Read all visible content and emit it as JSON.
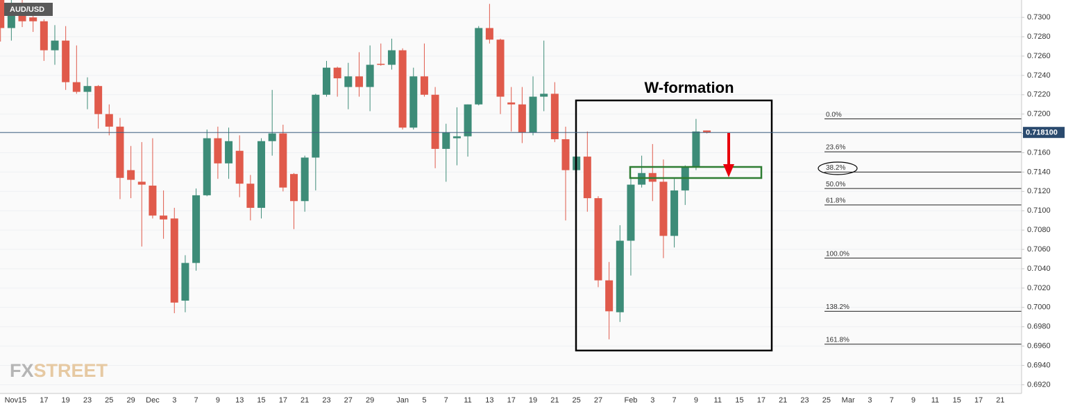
{
  "chart_data": {
    "type": "candlestick",
    "symbol": "AUD/USD",
    "watermark": {
      "prefix": "FX",
      "suffix": "STREET"
    },
    "annotation": "W-formation",
    "categories": [
      null,
      "Nov",
      "15",
      null,
      "17",
      null,
      "19",
      null,
      "23",
      null,
      "25",
      null,
      "29",
      null,
      "Dec",
      null,
      "3",
      null,
      "7",
      null,
      "9",
      null,
      "13",
      null,
      "15",
      null,
      "17",
      null,
      "21",
      null,
      "23",
      null,
      "27",
      null,
      "29",
      null,
      null,
      "Jan",
      null,
      "5",
      null,
      "7",
      null,
      "11",
      null,
      "13",
      null,
      "17",
      null,
      "19",
      null,
      "21",
      null,
      "25",
      null,
      "27",
      null,
      null,
      "Feb",
      null,
      "3",
      null,
      "7",
      null,
      "9",
      null,
      "11",
      null,
      "15",
      null,
      "17",
      null,
      "21",
      null,
      "23",
      null,
      "25",
      null,
      "Mar",
      null,
      "3",
      null,
      "7",
      null,
      "9",
      null,
      "11",
      null,
      "15",
      null,
      "17",
      null,
      "21",
      null
    ],
    "open": [
      0.732,
      0.7289,
      0.7315,
      0.73,
      0.7296,
      0.7266,
      0.7276,
      0.7233,
      0.7223,
      0.7229,
      0.72,
      0.7187,
      0.7142,
      0.713,
      0.7126,
      0.7095,
      0.7092,
      0.7007,
      0.7046,
      0.7116,
      0.7175,
      0.7149,
      0.7162,
      0.7128,
      0.7103,
      0.7172,
      0.718,
      0.7138,
      0.711,
      0.7155,
      0.722,
      0.7248,
      0.7228,
      0.7239,
      0.7228,
      0.7252,
      0.7251,
      0.7266,
      0.7186,
      0.7239,
      0.722,
      0.7164,
      0.7175,
      0.7177,
      0.721,
      0.7289,
      0.7277,
      0.7212,
      0.721,
      0.7181,
      0.7218,
      0.7221,
      0.7174,
      0.7142,
      0.7156,
      0.7113,
      0.7028,
      0.6995,
      0.7069,
      0.7127,
      0.7139,
      0.713,
      0.7074,
      0.7121,
      0.7145,
      0.7183,
      null,
      null,
      null,
      null,
      null,
      null,
      null,
      null,
      null,
      null,
      null,
      null,
      null,
      null,
      null,
      null,
      null,
      null,
      null,
      null,
      null,
      null,
      null,
      null,
      null,
      null,
      null,
      null
    ],
    "high": [
      0.7325,
      0.7322,
      0.7322,
      0.7306,
      0.7298,
      0.7292,
      0.7291,
      0.7271,
      0.7238,
      0.723,
      0.721,
      0.7196,
      0.7167,
      0.7171,
      0.7175,
      0.7121,
      0.7103,
      0.7054,
      0.7123,
      0.7184,
      0.7187,
      0.7186,
      0.7178,
      0.7137,
      0.7175,
      0.7225,
      0.7189,
      0.7139,
      0.7157,
      0.7221,
      0.7255,
      0.7249,
      0.7253,
      0.7264,
      0.7271,
      0.7273,
      0.7278,
      0.7268,
      0.7248,
      0.7273,
      0.7228,
      0.719,
      0.7207,
      0.721,
      0.7291,
      0.7314,
      0.7278,
      0.7228,
      0.7228,
      0.7239,
      0.7276,
      0.7233,
      0.7187,
      0.7157,
      0.7182,
      0.7115,
      0.7047,
      0.7085,
      0.7135,
      0.7157,
      0.7169,
      0.7153,
      0.7133,
      0.7147,
      0.7195,
      0.7183,
      null,
      null,
      null,
      null,
      null,
      null,
      null,
      null,
      null,
      null,
      null,
      null,
      null,
      null,
      null,
      null,
      null,
      null,
      null,
      null,
      null,
      null,
      null,
      null,
      null,
      null,
      null,
      null
    ],
    "low": [
      0.7275,
      0.7276,
      0.729,
      0.7285,
      0.7255,
      0.7251,
      0.7225,
      0.7221,
      0.7205,
      0.7185,
      0.7178,
      0.7112,
      0.7113,
      0.7063,
      0.7092,
      0.7071,
      0.6994,
      0.6995,
      0.7038,
      0.7115,
      0.7133,
      0.7133,
      0.7114,
      0.709,
      0.7092,
      0.7157,
      0.712,
      0.7081,
      0.7099,
      0.7121,
      0.7218,
      0.7218,
      0.7205,
      0.7218,
      0.7203,
      0.725,
      0.7246,
      0.7184,
      0.7184,
      0.7218,
      0.7144,
      0.713,
      0.7147,
      0.7156,
      0.7209,
      0.7273,
      0.72,
      0.7182,
      0.717,
      0.7178,
      0.7203,
      0.7171,
      0.709,
      0.7128,
      0.7099,
      0.7021,
      0.6967,
      0.6985,
      0.7033,
      0.7124,
      0.711,
      0.7051,
      0.7062,
      0.7106,
      0.7142,
      0.718,
      null,
      null,
      null,
      null,
      null,
      null,
      null,
      null,
      null,
      null,
      null,
      null,
      null,
      null,
      null,
      null,
      null,
      null,
      null,
      null,
      null,
      null,
      null,
      null,
      null,
      null,
      null,
      null
    ],
    "close": [
      0.7289,
      0.7315,
      0.7296,
      0.7296,
      0.7266,
      0.7276,
      0.7233,
      0.7223,
      0.7229,
      0.72,
      0.7187,
      0.7134,
      0.7132,
      0.7127,
      0.7095,
      0.7091,
      0.7005,
      0.7046,
      0.7116,
      0.7175,
      0.7149,
      0.7172,
      0.7128,
      0.7103,
      0.7172,
      0.718,
      0.7124,
      0.711,
      0.7155,
      0.722,
      0.7248,
      0.7237,
      0.7239,
      0.7228,
      0.7251,
      0.7251,
      0.7266,
      0.7186,
      0.7239,
      0.722,
      0.7164,
      0.7181,
      0.7177,
      0.721,
      0.7289,
      0.7277,
      0.7218,
      0.721,
      0.7181,
      0.7218,
      0.7221,
      0.7174,
      0.7142,
      0.7156,
      0.7113,
      0.7028,
      0.6996,
      0.7069,
      0.7127,
      0.7139,
      0.713,
      0.7074,
      0.7121,
      0.7145,
      0.7182,
      0.7181,
      null,
      null,
      null,
      null,
      null,
      null,
      null,
      null,
      null,
      null,
      null,
      null,
      null,
      null,
      null,
      null,
      null,
      null,
      null,
      null,
      null,
      null,
      null,
      null,
      null,
      null,
      null,
      null
    ],
    "up_color": "#3d8c78",
    "down_color": "#e05a4b",
    "ylim": [
      0.6911,
      0.7318
    ],
    "yticks": [
      {
        "value": 0.692,
        "label": "0.6920"
      },
      {
        "value": 0.694,
        "label": "0.6940"
      },
      {
        "value": 0.696,
        "label": "0.6960"
      },
      {
        "value": 0.698,
        "label": "0.6980"
      },
      {
        "value": 0.7,
        "label": "0.7000"
      },
      {
        "value": 0.702,
        "label": "0.7020"
      },
      {
        "value": 0.704,
        "label": "0.7040"
      },
      {
        "value": 0.706,
        "label": "0.7060"
      },
      {
        "value": 0.708,
        "label": "0.7080"
      },
      {
        "value": 0.71,
        "label": "0.7100"
      },
      {
        "value": 0.712,
        "label": "0.7120"
      },
      {
        "value": 0.714,
        "label": "0.7140"
      },
      {
        "value": 0.716,
        "label": "0.7160"
      },
      {
        "value": 0.718,
        "label": "0.7180"
      },
      {
        "value": 0.72,
        "label": "0.7200"
      },
      {
        "value": 0.722,
        "label": "0.7220"
      },
      {
        "value": 0.724,
        "label": "0.7240"
      },
      {
        "value": 0.726,
        "label": "0.7260"
      },
      {
        "value": 0.728,
        "label": "0.7280"
      },
      {
        "value": 0.73,
        "label": "0.7300"
      }
    ],
    "grid": true,
    "last_price": {
      "value": 0.7181,
      "label": "0.718100"
    },
    "fib_levels": [
      {
        "label": "0.0%",
        "price": 0.7195
      },
      {
        "label": "23.6%",
        "price": 0.7161
      },
      {
        "label": "38.2%",
        "price": 0.714
      },
      {
        "label": "50.0%",
        "price": 0.7123
      },
      {
        "label": "61.8%",
        "price": 0.7106
      },
      {
        "label": "100.0%",
        "price": 0.7051
      },
      {
        "label": "138.2%",
        "price": 0.6996
      },
      {
        "label": "161.8%",
        "price": 0.6962
      }
    ]
  }
}
